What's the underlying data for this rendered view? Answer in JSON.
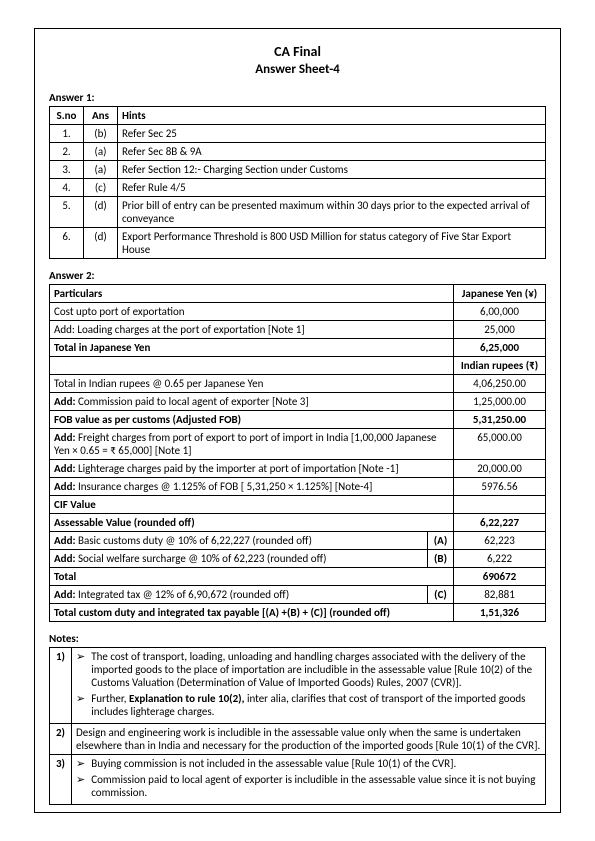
{
  "title": "CA Final",
  "subtitle": "Answer Sheet-4",
  "answer1": {
    "label": "Answer 1:",
    "headers": [
      "S.no",
      "Ans",
      "Hints"
    ],
    "rows": [
      {
        "sno": "1.",
        "ans": "(b)",
        "hint": "Refer Sec 25"
      },
      {
        "sno": "2.",
        "ans": "(a)",
        "hint": "Refer Sec 8B & 9A"
      },
      {
        "sno": "3.",
        "ans": "(a)",
        "hint": "Refer Section 12:- Charging Section under Customs"
      },
      {
        "sno": "4.",
        "ans": "(c)",
        "hint": "Refer Rule 4/5"
      },
      {
        "sno": "5.",
        "ans": "(d)",
        "hint": "Prior bill of entry can be presented maximum within 30 days prior to the expected arrival of conveyance"
      },
      {
        "sno": "6.",
        "ans": "(d)",
        "hint": "Export Performance Threshold is 800 USD Million for status category of Five Star Export House"
      }
    ]
  },
  "answer2": {
    "label": "Answer 2:",
    "header_particulars": "Particulars",
    "header_yen": "Japanese Yen (¥)",
    "header_inr": "Indian rupees (₹)",
    "rows_yen": [
      {
        "p": "Cost upto port of exportation",
        "v": "6,00,000",
        "bold": false
      },
      {
        "p": "Add: Loading charges at the port of exportation [Note 1]",
        "v": "25,000",
        "bold": false
      },
      {
        "p": "Total in Japanese Yen",
        "v": "6,25,000",
        "bold": true
      }
    ],
    "rows_inr": [
      {
        "p": "Total in Indian rupees @ 0.65 per Japanese Yen",
        "letter": "",
        "v": "4,06,250.00",
        "bold": false
      },
      {
        "p": "Add: Commission paid to local agent of exporter [Note 3]",
        "letter": "",
        "v": "1,25,000.00",
        "bold": false,
        "pbold_prefix": "Add:"
      },
      {
        "p": "FOB value as per customs (Adjusted FOB)",
        "letter": "",
        "v": "5,31,250.00",
        "bold": true
      },
      {
        "p": "Add: Freight charges from port of export to port of import in India [1,00,000 Japanese Yen × 0.65 = ₹ 65,000] [Note 1]",
        "letter": "",
        "v": "65,000.00",
        "bold": false,
        "pbold_prefix": "Add:"
      },
      {
        "p": "Add: Lighterage charges paid by the importer at port of importation [Note -1]",
        "letter": "",
        "v": "20,000.00",
        "bold": false,
        "pbold_prefix": "Add:"
      },
      {
        "p": "Add: Insurance charges @ 1.125% of FOB [ 5,31,250 × 1.125%] [Note-4]",
        "letter": "",
        "v": "5976.56",
        "bold": false,
        "pbold_prefix": "Add:"
      },
      {
        "p": "CIF Value",
        "letter": "",
        "v": "",
        "bold": true
      },
      {
        "p": "Assessable Value (rounded off)",
        "letter": "",
        "v": "6,22,227",
        "bold": true
      },
      {
        "p": "Add: Basic customs duty @ 10% of 6,22,227 (rounded off)",
        "letter": "(A)",
        "v": "62,223",
        "bold": false,
        "pbold_prefix": "Add:"
      },
      {
        "p": "Add: Social welfare surcharge @ 10% of 62,223  (rounded off)",
        "letter": "(B)",
        "v": "6,222",
        "bold": false,
        "pbold_prefix": "Add:"
      },
      {
        "p": "Total",
        "letter": "",
        "v": "690672",
        "bold": true
      },
      {
        "p": "Add: Integrated tax @ 12% of 6,90,672 (rounded off)",
        "letter": "(C)",
        "v": "82,881",
        "bold": false,
        "pbold_prefix": "Add:"
      },
      {
        "p": "Total custom duty and integrated tax payable [(A) +(B) + (C)] (rounded off)",
        "letter": "",
        "v": "1,51,326",
        "bold": true
      }
    ]
  },
  "notes": {
    "label": "Notes:",
    "items": [
      {
        "num": "1)",
        "bullets": [
          "The cost of transport, loading, unloading and handling charges associated with the delivery of the imported goods to the place of importation are includible in the assessable value [Rule 10(2) of the Customs Valuation (Determination of Value of Imported Goods) Rules, 2007 (CVR)].",
          "Further, Explanation to rule 10(2), inter alia, clarifies that cost of transport of the imported goods includes lighterage charges."
        ]
      },
      {
        "num": "2)",
        "plain": "Design and engineering work is includible in the assessable value only when the same is undertaken elsewhere than in India and necessary for the production of the imported goods [Rule 10(1) of the CVR]."
      },
      {
        "num": "3)",
        "bullets": [
          "Buying commission is not included in the assessable value [Rule 10(1) of the CVR].",
          "Commission paid to local agent of exporter is includible in the assessable value since it is not buying commission."
        ]
      }
    ]
  }
}
